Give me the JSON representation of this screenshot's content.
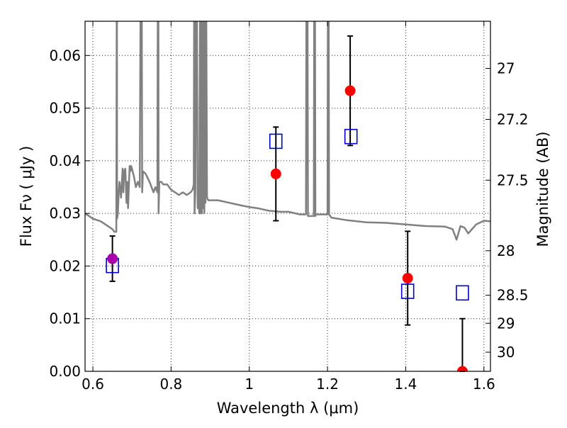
{
  "chart_data": {
    "type": "scatter",
    "xlabel": "Wavelength  λ (μm)",
    "ylabel": "Flux  Fν  ( μJy )",
    "ylabel2": "Magnitude (AB)",
    "xlim": [
      0.58,
      1.6167
    ],
    "ylim": [
      0.0,
      0.0665
    ],
    "grid": true,
    "x_ticks": [
      0.6,
      0.8,
      1.0,
      1.2,
      1.4,
      1.6
    ],
    "x_tick_labels": [
      "0.6",
      "0.8",
      "1",
      "1.2",
      "1.4",
      "1.6"
    ],
    "y_ticks": [
      0.0,
      0.01,
      0.02,
      0.03,
      0.04,
      0.05,
      0.06
    ],
    "y_tick_labels": [
      "0.00",
      "0.01",
      "0.02",
      "0.03",
      "0.04",
      "0.05",
      "0.06"
    ],
    "mag_ticks": [
      27,
      27.2,
      27.5,
      28,
      28.5,
      29,
      30
    ],
    "mag_tick_labels": [
      "27",
      "27.2",
      "27.5",
      "28",
      "28.5",
      "29",
      "30"
    ],
    "series": [
      {
        "kind": "spectrum",
        "color": "#808080",
        "x": [
          0.58,
          0.6,
          0.62,
          0.64,
          0.65,
          0.655,
          0.66,
          0.661,
          0.6615,
          0.662,
          0.664,
          0.666,
          0.668,
          0.672,
          0.676,
          0.678,
          0.68,
          0.683,
          0.686,
          0.688,
          0.69,
          0.694,
          0.696,
          0.698,
          0.7,
          0.705,
          0.71,
          0.715,
          0.72,
          0.722,
          0.724,
          0.725,
          0.726,
          0.728,
          0.735,
          0.745,
          0.755,
          0.76,
          0.765,
          0.766,
          0.767,
          0.7675,
          0.768,
          0.77,
          0.775,
          0.78,
          0.79,
          0.8,
          0.81,
          0.82,
          0.83,
          0.84,
          0.85,
          0.855,
          0.858,
          0.859,
          0.8595,
          0.86,
          0.862,
          0.864,
          0.866,
          0.868,
          0.87,
          0.872,
          0.874,
          0.875,
          0.8755,
          0.876,
          0.877,
          0.878,
          0.879,
          0.88,
          0.881,
          0.882,
          0.883,
          0.884,
          0.885,
          0.886,
          0.887,
          0.888,
          0.889,
          0.89,
          0.892,
          0.895,
          0.9,
          0.92,
          0.95,
          0.98,
          1.0,
          1.02,
          1.05,
          1.08,
          1.1,
          1.13,
          1.145,
          1.146,
          1.147,
          1.148,
          1.149,
          1.15,
          1.16,
          1.165,
          1.166,
          1.167,
          1.168,
          1.169,
          1.17,
          1.18,
          1.19,
          1.2,
          1.201,
          1.202,
          1.203,
          1.204,
          1.21,
          1.25,
          1.3,
          1.35,
          1.4,
          1.45,
          1.5,
          1.52,
          1.53,
          1.54,
          1.55,
          1.56,
          1.58,
          1.6,
          1.6167
        ],
        "y": [
          0.03,
          0.029,
          0.0285,
          0.0275,
          0.027,
          0.0265,
          0.0265,
          0.07,
          0.07,
          0.029,
          0.03,
          0.034,
          0.036,
          0.033,
          0.0385,
          0.034,
          0.038,
          0.0385,
          0.032,
          0.036,
          0.031,
          0.039,
          0.038,
          0.039,
          0.0385,
          0.037,
          0.035,
          0.036,
          0.035,
          0.07,
          0.07,
          0.07,
          0.034,
          0.038,
          0.0375,
          0.036,
          0.034,
          0.035,
          0.034,
          0.07,
          0.07,
          0.07,
          0.03,
          0.036,
          0.036,
          0.0355,
          0.0355,
          0.0345,
          0.034,
          0.0335,
          0.034,
          0.0335,
          0.034,
          0.0345,
          0.0355,
          0.07,
          0.07,
          0.03,
          0.034,
          0.07,
          0.07,
          0.031,
          0.034,
          0.03,
          0.07,
          0.07,
          0.07,
          0.03,
          0.07,
          0.07,
          0.03,
          0.07,
          0.07,
          0.031,
          0.07,
          0.07,
          0.03,
          0.07,
          0.07,
          0.032,
          0.07,
          0.07,
          0.033,
          0.0325,
          0.0325,
          0.0325,
          0.032,
          0.0315,
          0.0312,
          0.031,
          0.0305,
          0.0303,
          0.0303,
          0.0298,
          0.0298,
          0.07,
          0.07,
          0.07,
          0.07,
          0.0295,
          0.0295,
          0.0295,
          0.07,
          0.07,
          0.07,
          0.0295,
          0.0298,
          0.0298,
          0.0298,
          0.0298,
          0.07,
          0.07,
          0.07,
          0.0298,
          0.0292,
          0.0287,
          0.0283,
          0.0282,
          0.0279,
          0.0276,
          0.0275,
          0.027,
          0.025,
          0.0276,
          0.0273,
          0.0262,
          0.0279,
          0.0286,
          0.0285
        ]
      },
      {
        "kind": "observed",
        "color": "#ff0000",
        "x": [
          1.068,
          1.258,
          1.405,
          1.545
        ],
        "y": [
          0.0375,
          0.0533,
          0.0177,
          0.0
        ],
        "err": [
          0.0089,
          0.0104,
          0.0089,
          0.01
        ]
      },
      {
        "kind": "observed-highlight",
        "color": "#aa00aa",
        "x": [
          0.65
        ],
        "y": [
          0.0214
        ],
        "err": [
          0.0043
        ]
      },
      {
        "kind": "model",
        "color": "#0000cc",
        "x": [
          0.65,
          1.068,
          1.26,
          1.405,
          1.545
        ],
        "y": [
          0.0201,
          0.0437,
          0.0446,
          0.0152,
          0.0149
        ]
      }
    ]
  }
}
